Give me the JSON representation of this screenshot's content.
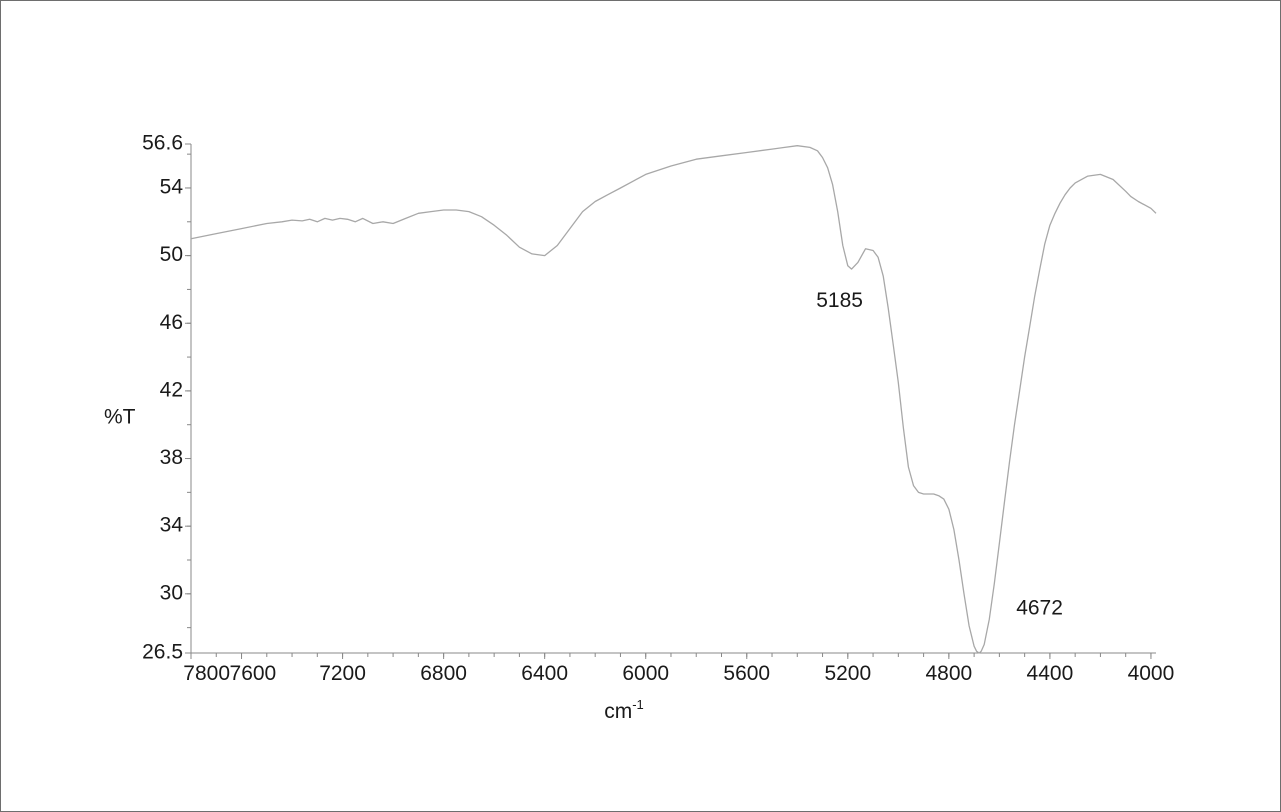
{
  "chart_data": {
    "type": "line",
    "title": "",
    "xlabel": "cm",
    "xlabel_superscript": "-1",
    "ylabel": "%T",
    "xlim": [
      7800,
      3980
    ],
    "ylim": [
      26.5,
      56.6
    ],
    "x_reversed": true,
    "grid": false,
    "legend": "none",
    "line_color": "#a8a8a8",
    "axis_color": "#888888",
    "x_ticks": [
      {
        "value": 7800,
        "label": "7800"
      },
      {
        "value": 7600,
        "label": "7600"
      },
      {
        "value": 7200,
        "label": "7200"
      },
      {
        "value": 6800,
        "label": "6800"
      },
      {
        "value": 6400,
        "label": "6400"
      },
      {
        "value": 6000,
        "label": "6000"
      },
      {
        "value": 5600,
        "label": "5600"
      },
      {
        "value": 5200,
        "label": "5200"
      },
      {
        "value": 4800,
        "label": "4800"
      },
      {
        "value": 4400,
        "label": "4400"
      },
      {
        "value": 4000,
        "label": "4000"
      }
    ],
    "y_ticks": [
      {
        "value": 56.6,
        "label": "56.6"
      },
      {
        "value": 54,
        "label": "54"
      },
      {
        "value": 50,
        "label": "50"
      },
      {
        "value": 46,
        "label": "46"
      },
      {
        "value": 42,
        "label": "42"
      },
      {
        "value": 38,
        "label": "38"
      },
      {
        "value": 34,
        "label": "34"
      },
      {
        "value": 30,
        "label": "30"
      },
      {
        "value": 26.5,
        "label": "26.5"
      }
    ],
    "annotations": [
      {
        "text": "5185",
        "x": 5185,
        "y": 49.2
      },
      {
        "text": "4672",
        "x": 4672,
        "y": 26.6
      }
    ],
    "series": [
      {
        "x": [
          7800,
          7700,
          7600,
          7500,
          7440,
          7400,
          7360,
          7330,
          7300,
          7270,
          7240,
          7210,
          7180,
          7150,
          7120,
          7080,
          7040,
          7000,
          6950,
          6900,
          6850,
          6800,
          6750,
          6700,
          6650,
          6600,
          6550,
          6500,
          6450,
          6400,
          6350,
          6300,
          6250,
          6200,
          6150,
          6100,
          6050,
          6000,
          5900,
          5800,
          5700,
          5600,
          5500,
          5450,
          5400,
          5350,
          5320,
          5300,
          5280,
          5260,
          5240,
          5220,
          5200,
          5185,
          5160,
          5130,
          5100,
          5080,
          5060,
          5040,
          5020,
          5000,
          4980,
          4960,
          4940,
          4920,
          4900,
          4880,
          4860,
          4840,
          4820,
          4800,
          4780,
          4760,
          4740,
          4720,
          4700,
          4690,
          4680,
          4672,
          4660,
          4640,
          4620,
          4600,
          4580,
          4560,
          4540,
          4520,
          4500,
          4480,
          4460,
          4440,
          4420,
          4400,
          4380,
          4360,
          4340,
          4320,
          4300,
          4250,
          4200,
          4150,
          4100,
          4080,
          4050,
          4000,
          3980
        ],
        "y": [
          51.0,
          51.3,
          51.6,
          51.9,
          52.0,
          52.1,
          52.05,
          52.15,
          52.0,
          52.2,
          52.1,
          52.2,
          52.15,
          52.0,
          52.2,
          51.9,
          52.0,
          51.9,
          52.2,
          52.5,
          52.6,
          52.7,
          52.7,
          52.6,
          52.3,
          51.8,
          51.2,
          50.5,
          50.1,
          50.0,
          50.6,
          51.6,
          52.6,
          53.2,
          53.6,
          54.0,
          54.4,
          54.8,
          55.3,
          55.7,
          55.9,
          56.1,
          56.3,
          56.4,
          56.5,
          56.4,
          56.2,
          55.8,
          55.2,
          54.2,
          52.6,
          50.6,
          49.4,
          49.2,
          49.6,
          50.4,
          50.3,
          49.9,
          48.8,
          46.9,
          44.7,
          42.5,
          39.8,
          37.5,
          36.4,
          36.0,
          35.9,
          35.9,
          35.9,
          35.8,
          35.6,
          35.0,
          33.8,
          32.0,
          30.0,
          28.1,
          26.9,
          26.6,
          26.5,
          26.6,
          27.0,
          28.5,
          30.6,
          33.0,
          35.4,
          37.8,
          40.0,
          42.0,
          44.0,
          45.8,
          47.6,
          49.2,
          50.7,
          51.8,
          52.5,
          53.1,
          53.6,
          54.0,
          54.3,
          54.7,
          54.8,
          54.5,
          53.8,
          53.5,
          53.2,
          52.8,
          52.5
        ]
      }
    ]
  }
}
